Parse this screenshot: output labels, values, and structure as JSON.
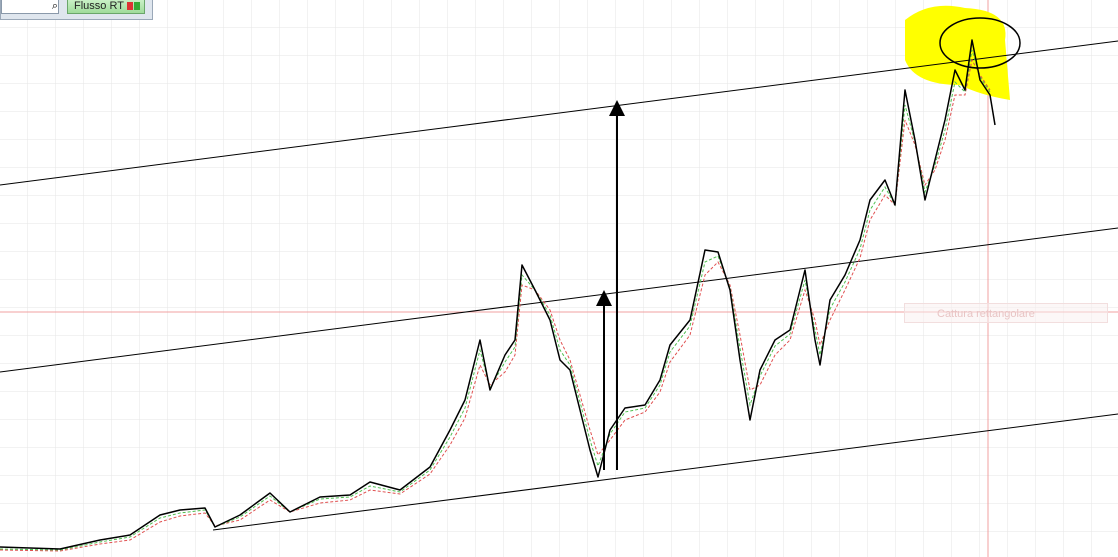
{
  "toolbar": {
    "button": "Flusso RT"
  },
  "overlay": {
    "label": "Cattura rettangolare"
  }
}
